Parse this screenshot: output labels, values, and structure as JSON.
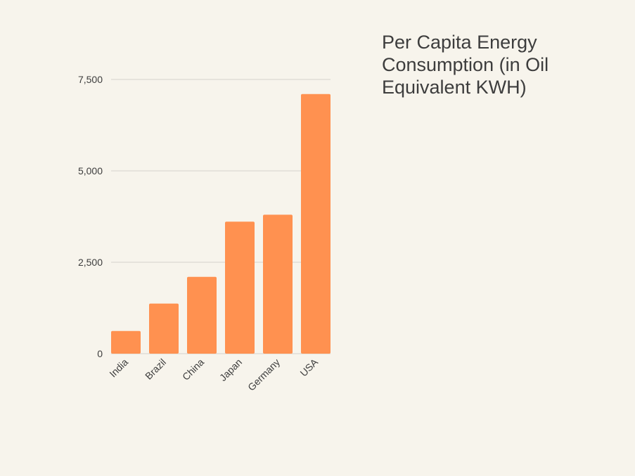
{
  "chart_data": {
    "type": "bar",
    "title": "Per Capita Energy Consumption (in Oil Equivalent KWH)",
    "categories": [
      "India",
      "Brazil",
      "China",
      "Japan",
      "Germany",
      "USA"
    ],
    "values": [
      620,
      1370,
      2100,
      3610,
      3800,
      7100
    ],
    "yticks": [
      0,
      2500,
      5000,
      7500
    ],
    "ytick_labels": [
      "0",
      "2,500",
      "5,000",
      "7,500"
    ],
    "ylim": [
      0,
      7500
    ],
    "grid": true,
    "bar_color": "#ff9150",
    "grid_color": "#d4d2cc",
    "legend": "none"
  }
}
